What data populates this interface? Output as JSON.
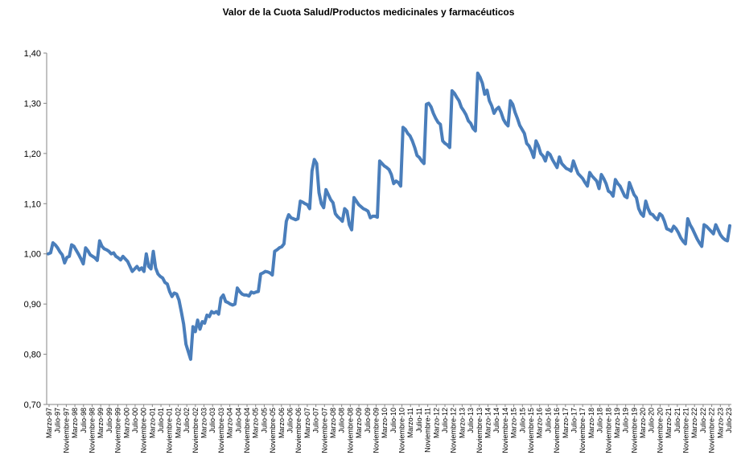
{
  "chart_data": {
    "type": "line",
    "title": "Valor de la Cuota Salud/Productos medicinales y farmacéuticos",
    "xlabel": "",
    "ylabel": "",
    "ylim": [
      0.7,
      1.4
    ],
    "yticks": [
      "0,70",
      "0,80",
      "0,90",
      "1,00",
      "1,10",
      "1,20",
      "1,30",
      "1,40"
    ],
    "grid": false,
    "legend": "none",
    "color": "#4a7ebb",
    "x_tick_labels": [
      "Marzo-97",
      "Julio-97",
      "Noviembre-97",
      "Marzo-98",
      "Julio-98",
      "Noviembre-98",
      "Marzo-99",
      "Julio-99",
      "Noviembre-99",
      "Marzo-00",
      "Julio-00",
      "Noviembre-00",
      "Marzo-01",
      "Julio-01",
      "Noviembre-01",
      "Marzo-02",
      "Julio-02",
      "Noviembre-02",
      "Marzo-03",
      "Julio-03",
      "Noviembre-03",
      "Marzo-04",
      "Julio-04",
      "Noviembre-04",
      "Marzo-05",
      "Julio-05",
      "Noviembre-05",
      "Marzo-06",
      "Julio-06",
      "Noviembre-06",
      "Marzo-07",
      "Julio-07",
      "Noviembre-07",
      "Marzo-08",
      "Julio-08",
      "Noviembre-08",
      "Marzo-09",
      "Julio-09",
      "Noviembre-09",
      "Marzo-10",
      "Julio-10",
      "Noviembre-10",
      "Marzo-11",
      "Julio-11",
      "Noviembre-11",
      "Marzo-12",
      "Julio-12",
      "Noviembre-12",
      "Marzo-13",
      "Julio-13",
      "Noviembre-13",
      "Marzo-14",
      "Julio-14",
      "Noviembre-14",
      "Marzo-15",
      "Julio-15",
      "Noviembre-15",
      "Marzo-16",
      "Julio-16",
      "Noviembre-16",
      "Marzo-17",
      "Julio-17",
      "Noviembre-17",
      "Marzo-18",
      "Julio-18",
      "Noviembre-18",
      "Marzo-19",
      "Julio-19",
      "Noviembre-19",
      "Marzo-20",
      "Julio-20",
      "Noviembre-20",
      "Marzo-21",
      "Julio-21",
      "Noviembre-21",
      "Marzo-22",
      "Julio-22",
      "Noviembre-22",
      "Marzo-23",
      "Julio-23"
    ],
    "series": [
      {
        "values": [
          1.0,
          1.002,
          1.022,
          1.018,
          1.012,
          1.004,
          0.998,
          0.982,
          0.993,
          0.995,
          1.018,
          1.015,
          1.007,
          0.999,
          0.99,
          0.98,
          1.012,
          1.006,
          0.998,
          0.995,
          0.992,
          0.987,
          1.026,
          1.015,
          1.01,
          1.008,
          1.005,
          1.0,
          1.002,
          0.995,
          0.992,
          0.988,
          0.995,
          0.99,
          0.985,
          0.975,
          0.965,
          0.97,
          0.975,
          0.968,
          0.972,
          0.965,
          1.0,
          0.975,
          0.97,
          1.005,
          0.972,
          0.96,
          0.955,
          0.952,
          0.943,
          0.94,
          0.925,
          0.915,
          0.922,
          0.92,
          0.908,
          0.885,
          0.86,
          0.82,
          0.805,
          0.79,
          0.855,
          0.845,
          0.868,
          0.85,
          0.865,
          0.862,
          0.878,
          0.875,
          0.885,
          0.882,
          0.885,
          0.88,
          0.912,
          0.918,
          0.905,
          0.903,
          0.9,
          0.898,
          0.9,
          0.932,
          0.925,
          0.92,
          0.918,
          0.918,
          0.916,
          0.924,
          0.922,
          0.924,
          0.925,
          0.96,
          0.962,
          0.965,
          0.964,
          0.962,
          0.958,
          1.005,
          1.008,
          1.012,
          1.014,
          1.02,
          1.065,
          1.078,
          1.072,
          1.07,
          1.068,
          1.07,
          1.105,
          1.103,
          1.1,
          1.098,
          1.09,
          1.165,
          1.188,
          1.18,
          1.122,
          1.1,
          1.092,
          1.128,
          1.118,
          1.108,
          1.102,
          1.08,
          1.074,
          1.07,
          1.065,
          1.09,
          1.085,
          1.058,
          1.048,
          1.112,
          1.105,
          1.098,
          1.094,
          1.09,
          1.088,
          1.085,
          1.072,
          1.075,
          1.075,
          1.073,
          1.185,
          1.18,
          1.175,
          1.172,
          1.168,
          1.158,
          1.14,
          1.145,
          1.142,
          1.135,
          1.252,
          1.248,
          1.24,
          1.235,
          1.225,
          1.212,
          1.196,
          1.192,
          1.185,
          1.18,
          1.298,
          1.3,
          1.293,
          1.28,
          1.27,
          1.262,
          1.258,
          1.225,
          1.22,
          1.217,
          1.212,
          1.325,
          1.32,
          1.312,
          1.305,
          1.292,
          1.285,
          1.277,
          1.265,
          1.26,
          1.25,
          1.245,
          1.36,
          1.352,
          1.34,
          1.318,
          1.326,
          1.305,
          1.295,
          1.28,
          1.288,
          1.292,
          1.282,
          1.268,
          1.26,
          1.255,
          1.305,
          1.298,
          1.282,
          1.27,
          1.256,
          1.248,
          1.24,
          1.22,
          1.215,
          1.205,
          1.192,
          1.225,
          1.215,
          1.2,
          1.195,
          1.185,
          1.202,
          1.198,
          1.188,
          1.18,
          1.172,
          1.193,
          1.18,
          1.175,
          1.17,
          1.168,
          1.165,
          1.185,
          1.172,
          1.16,
          1.155,
          1.15,
          1.142,
          1.135,
          1.162,
          1.155,
          1.15,
          1.145,
          1.13,
          1.158,
          1.15,
          1.14,
          1.125,
          1.122,
          1.115,
          1.148,
          1.14,
          1.135,
          1.125,
          1.115,
          1.112,
          1.142,
          1.13,
          1.118,
          1.112,
          1.09,
          1.08,
          1.075,
          1.105,
          1.09,
          1.08,
          1.078,
          1.072,
          1.068,
          1.08,
          1.076,
          1.065,
          1.05,
          1.048,
          1.045,
          1.055,
          1.05,
          1.042,
          1.032,
          1.025,
          1.02,
          1.07,
          1.058,
          1.05,
          1.04,
          1.03,
          1.022,
          1.015,
          1.058,
          1.055,
          1.05,
          1.045,
          1.04,
          1.058,
          1.048,
          1.038,
          1.032,
          1.028,
          1.026,
          1.056
        ]
      }
    ]
  }
}
